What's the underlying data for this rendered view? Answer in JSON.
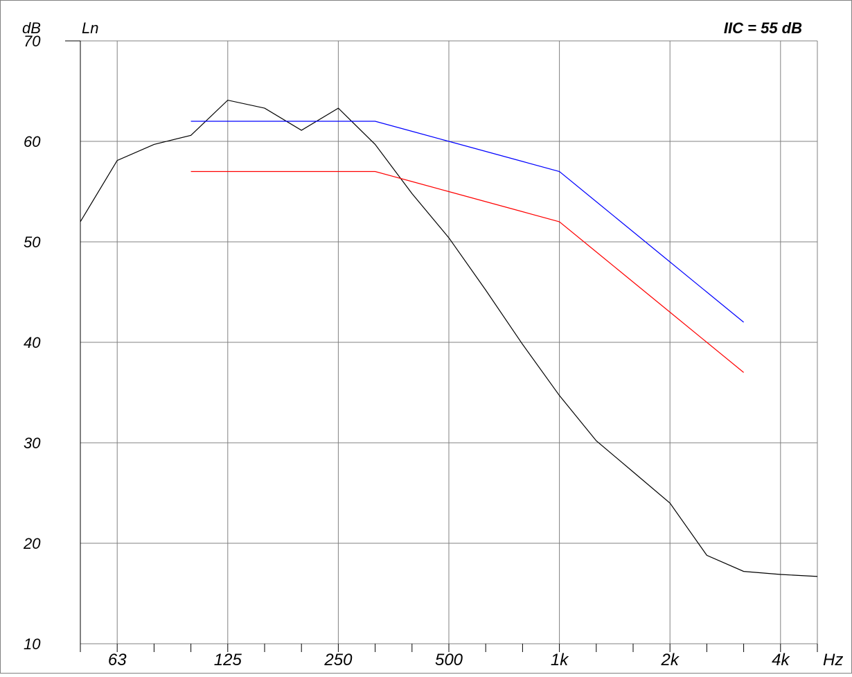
{
  "chart_data": {
    "type": "line",
    "title": "",
    "ylabel": "dB",
    "series_label": "Ln",
    "result_label": "IIC = 55 dB",
    "xunit": "Hz",
    "ylim": [
      10,
      70
    ],
    "yticks": [
      10,
      20,
      30,
      40,
      50,
      60,
      70
    ],
    "x_bands": [
      50,
      63,
      80,
      100,
      125,
      160,
      200,
      250,
      315,
      400,
      500,
      630,
      800,
      1000,
      1250,
      1600,
      2000,
      2500,
      3150,
      4000,
      5000
    ],
    "x_tick_labels": [
      {
        "band": 63,
        "label": "63"
      },
      {
        "band": 125,
        "label": "125"
      },
      {
        "band": 250,
        "label": "250"
      },
      {
        "band": 500,
        "label": "500"
      },
      {
        "band": 1000,
        "label": "1k"
      },
      {
        "band": 2000,
        "label": "2k"
      },
      {
        "band": 4000,
        "label": "4k"
      }
    ],
    "grid": true,
    "series": [
      {
        "color": "#000000",
        "x": [
          50,
          63,
          80,
          100,
          125,
          160,
          200,
          250,
          315,
          400,
          500,
          630,
          800,
          1000,
          1250,
          1600,
          2000,
          2500,
          3150,
          4000,
          5000
        ],
        "values": [
          52.0,
          58.1,
          59.7,
          60.6,
          64.1,
          63.3,
          61.1,
          63.3,
          59.7,
          54.8,
          50.4,
          45.2,
          39.8,
          34.7,
          30.2,
          27.1,
          24.0,
          18.8,
          17.2,
          16.9,
          16.7
        ]
      },
      {
        "color": "#0000ff",
        "x": [
          100,
          125,
          160,
          200,
          250,
          315,
          400,
          500,
          630,
          800,
          1000,
          1250,
          1600,
          2000,
          2500,
          3150
        ],
        "values": [
          62,
          62,
          62,
          62,
          62,
          62,
          61,
          60,
          59,
          58,
          57,
          54,
          51,
          48,
          45,
          42
        ]
      },
      {
        "color": "#ff0000",
        "x": [
          100,
          125,
          160,
          200,
          250,
          315,
          400,
          500,
          630,
          800,
          1000,
          1250,
          1600,
          2000,
          2500,
          3150
        ],
        "values": [
          57,
          57,
          57,
          57,
          57,
          57,
          56,
          55,
          54,
          53,
          52,
          49,
          46,
          43,
          40,
          37
        ]
      }
    ]
  }
}
